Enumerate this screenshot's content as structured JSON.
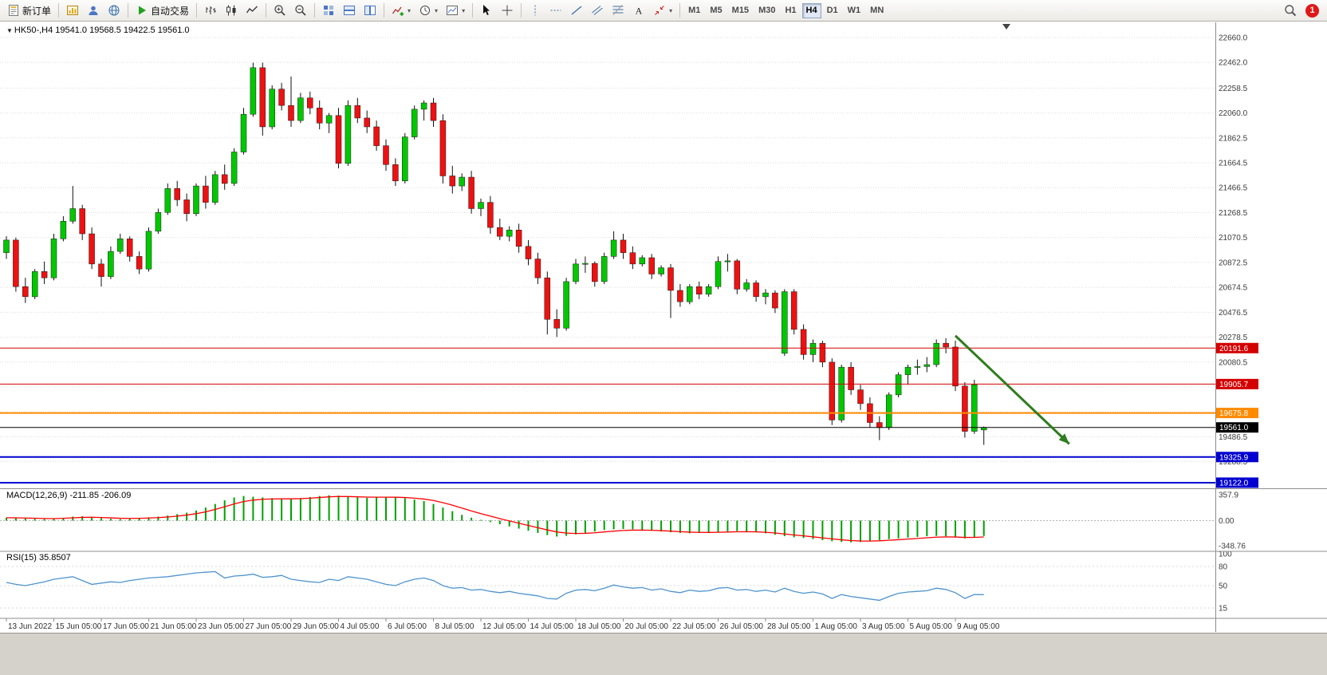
{
  "toolbar": {
    "groups": [
      {
        "items": [
          {
            "name": "new-order-button",
            "icon": "new-order",
            "label": "新订单"
          }
        ]
      },
      {
        "items": [
          {
            "name": "new-chart-button",
            "icon": "new-chart"
          },
          {
            "name": "profiles-button",
            "icon": "profiles"
          },
          {
            "name": "community-button",
            "icon": "community"
          }
        ]
      },
      {
        "items": [
          {
            "name": "auto-trading-button",
            "icon": "play",
            "label": "自动交易"
          }
        ]
      },
      {
        "items": [
          {
            "name": "bar-chart-button",
            "icon": "bars"
          },
          {
            "name": "candlestick-chart-button",
            "icon": "candles"
          },
          {
            "name": "line-chart-button",
            "icon": "linechart"
          }
        ]
      },
      {
        "items": [
          {
            "name": "zoom-in-button",
            "icon": "zoom-in"
          },
          {
            "name": "zoom-out-button",
            "icon": "zoom-out"
          }
        ]
      },
      {
        "items": [
          {
            "name": "tile-windows-button",
            "icon": "tile-grid"
          },
          {
            "name": "tile-horizontal-button",
            "icon": "tile-h"
          },
          {
            "name": "tile-vertical-button",
            "icon": "tile-v"
          }
        ]
      },
      {
        "items": [
          {
            "name": "indicators-button",
            "icon": "indicators",
            "caret": true
          },
          {
            "name": "periods-button",
            "icon": "periods",
            "caret": true
          },
          {
            "name": "templates-button",
            "icon": "templates",
            "caret": true
          }
        ]
      },
      {
        "items": [
          {
            "name": "cursor-button",
            "icon": "cursor"
          },
          {
            "name": "crosshair-button",
            "icon": "crosshair"
          }
        ]
      },
      {
        "items": [
          {
            "name": "vertical-line-button",
            "icon": "vline"
          },
          {
            "name": "horizontal-line-button",
            "icon": "hline"
          },
          {
            "name": "trendline-button",
            "icon": "trendline"
          },
          {
            "name": "channel-button",
            "icon": "channel"
          },
          {
            "name": "fibonacci-button",
            "icon": "fibonacci"
          },
          {
            "name": "text-button",
            "icon": "text"
          },
          {
            "name": "arrows-button",
            "icon": "arrows",
            "caret": true
          }
        ]
      }
    ],
    "timeframes": {
      "items": [
        "M1",
        "M5",
        "M15",
        "M30",
        "H1",
        "H4",
        "D1",
        "W1",
        "MN"
      ],
      "active": "H4"
    },
    "notification": {
      "count": "1"
    }
  },
  "chart": {
    "title_text": "HK50-,H4 19541.0 19568.5 19422.5 19561.0"
  },
  "chart_data": {
    "type": "candlestick",
    "symbol": "HK50-",
    "timeframe": "H4",
    "last_ohlc": {
      "open": 19541.0,
      "high": 19568.5,
      "low": 19422.5,
      "close": 19561.0
    },
    "colors": {
      "up": "#00c800",
      "down": "#ee1111",
      "wick": "#111111",
      "grid": "#dddddd",
      "axis_text": "#3c3c3c"
    },
    "y_axis": {
      "visible_range": [
        19090,
        22790
      ],
      "gridlines": [
        {
          "v": 22660.0,
          "label": "22660.0"
        },
        {
          "v": 22462.0,
          "label": "22462.0"
        },
        {
          "v": 22258.5,
          "label": "22258.5"
        },
        {
          "v": 22060.0,
          "label": "22060.0"
        },
        {
          "v": 21862.5,
          "label": "21862.5"
        },
        {
          "v": 21664.5,
          "label": "21664.5"
        },
        {
          "v": 21466.5,
          "label": "21466.5"
        },
        {
          "v": 21268.5,
          "label": "21268.5"
        },
        {
          "v": 21070.5,
          "label": "21070.5"
        },
        {
          "v": 20872.5,
          "label": "20872.5"
        },
        {
          "v": 20674.5,
          "label": "20674.5"
        },
        {
          "v": 20476.5,
          "label": "20476.5"
        },
        {
          "v": 20278.5,
          "label": "20278.5"
        },
        {
          "v": 20080.5,
          "label": "20080.5"
        },
        {
          "v": 19882.5,
          "label": ""
        },
        {
          "v": 19684.5,
          "label": ""
        },
        {
          "v": 19486.5,
          "label": "19486.5"
        },
        {
          "v": 19288.5,
          "label": "19288.5"
        }
      ]
    },
    "x_labels": [
      {
        "label": "13 Jun 2022",
        "i": 0
      },
      {
        "label": "15 Jun 05:00",
        "i": 5
      },
      {
        "label": "17 Jun 05:00",
        "i": 10
      },
      {
        "label": "21 Jun 05:00",
        "i": 15
      },
      {
        "label": "23 Jun 05:00",
        "i": 20
      },
      {
        "label": "27 Jun 05:00",
        "i": 25
      },
      {
        "label": "29 Jun 05:00",
        "i": 30
      },
      {
        "label": "4 Jul 05:00",
        "i": 35
      },
      {
        "label": "6 Jul 05:00",
        "i": 40
      },
      {
        "label": "8 Jul 05:00",
        "i": 45
      },
      {
        "label": "12 Jul 05:00",
        "i": 50
      },
      {
        "label": "14 Jul 05:00",
        "i": 55
      },
      {
        "label": "18 Jul 05:00",
        "i": 60
      },
      {
        "label": "20 Jul 05:00",
        "i": 65
      },
      {
        "label": "22 Jul 05:00",
        "i": 70
      },
      {
        "label": "26 Jul 05:00",
        "i": 75
      },
      {
        "label": "28 Jul 05:00",
        "i": 80
      },
      {
        "label": "1 Aug 05:00",
        "i": 85
      },
      {
        "label": "3 Aug 05:00",
        "i": 90
      },
      {
        "label": "5 Aug 05:00",
        "i": 95
      },
      {
        "label": "9 Aug 05:00",
        "i": 100
      }
    ],
    "candles": [
      [
        20950,
        21080,
        20900,
        21050
      ],
      [
        21050,
        21070,
        20640,
        20680
      ],
      [
        20680,
        20750,
        20550,
        20600
      ],
      [
        20600,
        20820,
        20580,
        20800
      ],
      [
        20800,
        20880,
        20700,
        20750
      ],
      [
        20750,
        21100,
        20730,
        21060
      ],
      [
        21060,
        21240,
        21040,
        21200
      ],
      [
        21200,
        21480,
        21180,
        21300
      ],
      [
        21300,
        21330,
        21050,
        21100
      ],
      [
        21100,
        21150,
        20820,
        20860
      ],
      [
        20860,
        20900,
        20680,
        20760
      ],
      [
        20760,
        21000,
        20740,
        20960
      ],
      [
        20960,
        21100,
        20940,
        21060
      ],
      [
        21060,
        21080,
        20880,
        20920
      ],
      [
        20920,
        20960,
        20780,
        20820
      ],
      [
        20820,
        21150,
        20800,
        21120
      ],
      [
        21120,
        21300,
        21100,
        21270
      ],
      [
        21270,
        21500,
        21250,
        21460
      ],
      [
        21460,
        21520,
        21320,
        21370
      ],
      [
        21370,
        21420,
        21200,
        21260
      ],
      [
        21260,
        21500,
        21240,
        21480
      ],
      [
        21480,
        21560,
        21300,
        21350
      ],
      [
        21350,
        21600,
        21330,
        21570
      ],
      [
        21570,
        21650,
        21450,
        21500
      ],
      [
        21500,
        21780,
        21480,
        21750
      ],
      [
        21750,
        22100,
        21730,
        22050
      ],
      [
        22050,
        22460,
        22030,
        22420
      ],
      [
        22420,
        22460,
        21880,
        21950
      ],
      [
        21950,
        22280,
        21930,
        22250
      ],
      [
        22250,
        22300,
        22080,
        22120
      ],
      [
        22120,
        22350,
        21950,
        22000
      ],
      [
        22000,
        22220,
        21980,
        22180
      ],
      [
        22180,
        22230,
        22050,
        22100
      ],
      [
        22100,
        22160,
        21930,
        21980
      ],
      [
        21980,
        22060,
        21900,
        22040
      ],
      [
        22040,
        22100,
        21620,
        21660
      ],
      [
        21660,
        22160,
        21640,
        22120
      ],
      [
        22120,
        22180,
        21980,
        22020
      ],
      [
        22020,
        22080,
        21900,
        21950
      ],
      [
        21950,
        22000,
        21760,
        21800
      ],
      [
        21800,
        21850,
        21600,
        21650
      ],
      [
        21650,
        21700,
        21480,
        21520
      ],
      [
        21520,
        21900,
        21500,
        21870
      ],
      [
        21870,
        22120,
        21850,
        22090
      ],
      [
        22090,
        22160,
        22000,
        22140
      ],
      [
        22140,
        22180,
        21950,
        22000
      ],
      [
        22000,
        22050,
        21500,
        21560
      ],
      [
        21560,
        21640,
        21420,
        21480
      ],
      [
        21480,
        21580,
        21440,
        21550
      ],
      [
        21550,
        21600,
        21260,
        21300
      ],
      [
        21300,
        21380,
        21240,
        21350
      ],
      [
        21350,
        21400,
        21100,
        21150
      ],
      [
        21150,
        21220,
        21050,
        21080
      ],
      [
        21080,
        21160,
        21040,
        21130
      ],
      [
        21130,
        21180,
        20950,
        21000
      ],
      [
        21000,
        21050,
        20850,
        20900
      ],
      [
        20900,
        20950,
        20700,
        20750
      ],
      [
        20750,
        20800,
        20300,
        20420
      ],
      [
        20420,
        20500,
        20280,
        20350
      ],
      [
        20350,
        20750,
        20330,
        20720
      ],
      [
        20720,
        20900,
        20700,
        20860
      ],
      [
        20860,
        20920,
        20790,
        20865
      ],
      [
        20865,
        20880,
        20680,
        20720
      ],
      [
        20720,
        20950,
        20700,
        20920
      ],
      [
        20920,
        21120,
        20900,
        21050
      ],
      [
        21050,
        21100,
        20900,
        20950
      ],
      [
        20950,
        21000,
        20820,
        20860
      ],
      [
        20860,
        20930,
        20840,
        20910
      ],
      [
        20910,
        20940,
        20740,
        20780
      ],
      [
        20780,
        20850,
        20760,
        20830
      ],
      [
        20830,
        20860,
        20430,
        20650
      ],
      [
        20650,
        20700,
        20520,
        20560
      ],
      [
        20560,
        20700,
        20540,
        20680
      ],
      [
        20680,
        20720,
        20580,
        20620
      ],
      [
        20620,
        20700,
        20600,
        20680
      ],
      [
        20680,
        20920,
        20660,
        20880
      ],
      [
        20880,
        20940,
        20800,
        20885
      ],
      [
        20885,
        20900,
        20620,
        20660
      ],
      [
        20660,
        20740,
        20640,
        20710
      ],
      [
        20710,
        20730,
        20560,
        20600
      ],
      [
        20600,
        20660,
        20540,
        20630
      ],
      [
        20630,
        20650,
        20470,
        20510
      ],
      [
        20150,
        20660,
        20130,
        20640
      ],
      [
        20640,
        20660,
        20300,
        20340
      ],
      [
        20340,
        20380,
        20100,
        20140
      ],
      [
        20140,
        20260,
        20080,
        20230
      ],
      [
        20230,
        20250,
        20040,
        20080
      ],
      [
        20080,
        20110,
        19580,
        19620
      ],
      [
        19620,
        20060,
        19600,
        20040
      ],
      [
        20040,
        20080,
        19820,
        19860
      ],
      [
        19860,
        19900,
        19700,
        19750
      ],
      [
        19750,
        19800,
        19560,
        19600
      ],
      [
        19600,
        19650,
        19460,
        19560
      ],
      [
        19560,
        19840,
        19540,
        19820
      ],
      [
        19820,
        20000,
        19800,
        19980
      ],
      [
        19980,
        20060,
        19900,
        20040
      ],
      [
        20040,
        20100,
        19980,
        20045
      ],
      [
        20045,
        20120,
        20000,
        20060
      ],
      [
        20060,
        20260,
        20040,
        20230
      ],
      [
        20230,
        20270,
        20150,
        20200
      ],
      [
        20200,
        20250,
        19850,
        19890
      ],
      [
        19890,
        19920,
        19480,
        19530
      ],
      [
        19530,
        19940,
        19510,
        19900
      ],
      [
        19541,
        19568.5,
        19422.5,
        19561
      ]
    ],
    "levels": [
      {
        "price": 20191.6,
        "text": "20191.6",
        "color": "#d40000",
        "width": 1
      },
      {
        "price": 19905.7,
        "text": "19905.7",
        "color": "#d40000",
        "width": 1
      },
      {
        "price": 19675.8,
        "text": "19675.8",
        "color": "#ff8a00",
        "width": 2
      },
      {
        "price": 19561.0,
        "text": "19561.0",
        "color": "#000000",
        "width": 1
      },
      {
        "price": 19325.9,
        "text": "19325.9",
        "color": "#0000d0",
        "width": 2
      },
      {
        "price": 19122.0,
        "text": "19122.0",
        "color": "#0000d0",
        "width": 2
      }
    ],
    "arrow": {
      "from_i": 100,
      "from_price": 20290,
      "to_i": 112,
      "to_price": 19430,
      "color": "#2f7d1f"
    },
    "macd": {
      "label": "MACD(12,26,9) -211.85 -206.09",
      "hist_color": "#00a000",
      "signal_color": "#ff0000",
      "axis": [
        {
          "v": 357.9,
          "label": "357.9"
        },
        {
          "v": 0,
          "label": "0.00"
        },
        {
          "v": -348.76,
          "label": "-348.76"
        }
      ],
      "values": [
        40,
        35,
        30,
        25,
        20,
        25,
        40,
        55,
        60,
        50,
        35,
        25,
        20,
        25,
        35,
        45,
        55,
        70,
        90,
        110,
        140,
        180,
        230,
        280,
        320,
        340,
        330,
        320,
        310,
        305,
        300,
        310,
        325,
        340,
        350,
        345,
        330,
        320,
        315,
        320,
        325,
        320,
        310,
        290,
        270,
        230,
        180,
        130,
        80,
        40,
        10,
        -20,
        -50,
        -80,
        -110,
        -140,
        -170,
        -200,
        -220,
        -210,
        -190,
        -170,
        -150,
        -130,
        -120,
        -115,
        -120,
        -130,
        -140,
        -150,
        -160,
        -170,
        -175,
        -170,
        -165,
        -155,
        -150,
        -145,
        -150,
        -160,
        -175,
        -195,
        -215,
        -230,
        -240,
        -255,
        -270,
        -285,
        -295,
        -300,
        -295,
        -285,
        -270,
        -255,
        -245,
        -235,
        -225,
        -215,
        -210,
        -215,
        -230,
        -245,
        -230,
        -211.85
      ]
    },
    "rsi": {
      "label": "RSI(15) 35.8507",
      "line_color": "#4f94cd",
      "axis": [
        {
          "v": 100,
          "label": "100"
        },
        {
          "v": 80,
          "label": "80"
        },
        {
          "v": 50,
          "label": "50"
        },
        {
          "v": 15,
          "label": "15"
        }
      ],
      "values": [
        55,
        52,
        50,
        53,
        56,
        60,
        62,
        64,
        58,
        52,
        54,
        56,
        55,
        58,
        60,
        62,
        63,
        64,
        66,
        68,
        70,
        71,
        72,
        62,
        65,
        66,
        68,
        63,
        64,
        66,
        60,
        58,
        56,
        55,
        60,
        58,
        64,
        62,
        60,
        56,
        52,
        50,
        56,
        60,
        62,
        58,
        50,
        46,
        47,
        43,
        44,
        41,
        39,
        41,
        38,
        36,
        34,
        30,
        29,
        38,
        43,
        44,
        42,
        46,
        51,
        48,
        46,
        47,
        43,
        45,
        41,
        39,
        43,
        41,
        42,
        46,
        47,
        43,
        44,
        41,
        43,
        40,
        46,
        41,
        38,
        40,
        37,
        30,
        36,
        33,
        31,
        29,
        27,
        33,
        38,
        40,
        41,
        42,
        46,
        44,
        39,
        30,
        36,
        35.85
      ]
    }
  }
}
